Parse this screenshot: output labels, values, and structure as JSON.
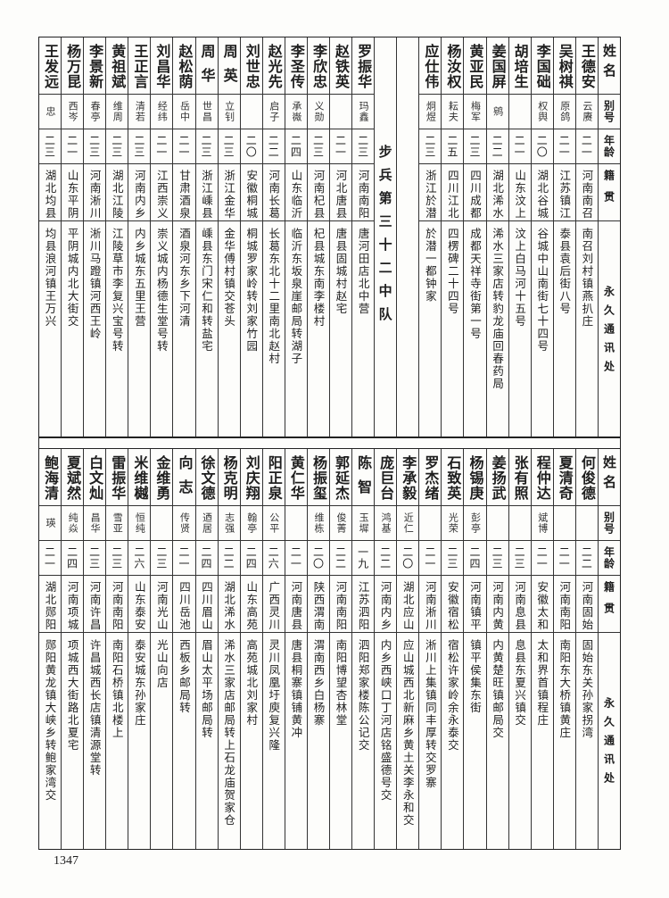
{
  "header": {
    "name": "姓名",
    "alias": "别号",
    "age": "年龄",
    "native": "籍贯",
    "address": "永久通讯处"
  },
  "top_group_1": [
    {
      "name": "王德安",
      "alias": "云赓",
      "age": "二一",
      "native": "河南南召",
      "address": "南召刘村镇燕扒庄"
    },
    {
      "name": "吴树祺",
      "alias": "原鸽",
      "age": "二一",
      "native": "江苏镇江",
      "address": "泰县袁后街八号"
    },
    {
      "name": "李国础",
      "alias": "权舆",
      "age": "二〇",
      "native": "湖北谷城",
      "address": "谷城中山南街七十四号"
    },
    {
      "name": "胡培生",
      "alias": "",
      "age": "二一",
      "native": "山东汶上",
      "address": "汶上白马河十五号"
    },
    {
      "name": "姜国屏",
      "alias": "鹓",
      "age": "二二",
      "native": "湖北浠水",
      "address": "浠水三家店转豹龙庙回春药局"
    },
    {
      "name": "黄亚民",
      "alias": "梅军",
      "age": "二三",
      "native": "四川成都",
      "address": "成都天祥寺街第一号"
    },
    {
      "name": "杨汝权",
      "alias": "耘夫",
      "age": "二五",
      "native": "四川江北",
      "address": "四楞碑二十四号"
    },
    {
      "name": "应仕伟",
      "alias": "炯煜",
      "age": "二三",
      "native": "浙江於潜",
      "address": "於潜一都钟家"
    }
  ],
  "section_title": "步兵第三十二中队",
  "top_group_2": [
    {
      "name": "罗振华",
      "alias": "玛鑫",
      "age": "二三",
      "native": "河南南阳",
      "address": "唐河田店北中营"
    },
    {
      "name": "赵铁英",
      "alias": "",
      "age": "二一",
      "native": "河北唐县",
      "address": "唐县固城村赵宅"
    },
    {
      "name": "李欣忠",
      "alias": "义勋",
      "age": "二三",
      "native": "河南杞县",
      "address": "杞县城东南李楼村"
    },
    {
      "name": "李圣传",
      "alias": "承嶶",
      "age": "二四",
      "native": "山东临沂",
      "address": "临沂东坂泉崖邮局转湖子"
    },
    {
      "name": "赵光先",
      "alias": "启子",
      "age": "二二",
      "native": "河南长葛",
      "address": "长葛东北十二里南北赵村"
    },
    {
      "name": "刘世忠",
      "alias": "",
      "age": "二〇",
      "native": "安徽桐城",
      "address": "桐城罗家岭转刘家竹园"
    },
    {
      "name": "周英",
      "alias": "立钊",
      "age": "二三",
      "native": "浙江金华",
      "address": "金华傅村镇交苍头"
    },
    {
      "name": "周华",
      "alias": "世昌",
      "age": "二三",
      "native": "浙江嵊县",
      "address": "嵊县东门宋仁和转盐宅"
    },
    {
      "name": "赵松荫",
      "alias": "岳中",
      "age": "二一",
      "native": "甘肃酒泉",
      "address": "酒泉河东乡下河清"
    },
    {
      "name": "刘昌华",
      "alias": "经纬",
      "age": "二一",
      "native": "江西崇义",
      "address": "崇义城内杨德生堂号转"
    },
    {
      "name": "王正言",
      "alias": "清若",
      "age": "二三",
      "native": "河南内乡",
      "address": "内乡城东五里王营"
    },
    {
      "name": "黄祖斌",
      "alias": "维周",
      "age": "二三",
      "native": "湖北江陵",
      "address": "江陵草市李复兴宝号转"
    },
    {
      "name": "李景新",
      "alias": "春亭",
      "age": "二三",
      "native": "河南淅川",
      "address": "淅川马蹬镇河西王岭"
    },
    {
      "name": "杨万昆",
      "alias": "西岑",
      "age": "二一",
      "native": "山东平阴",
      "address": "平阴城内北大街交"
    },
    {
      "name": "王发远",
      "alias": "忠",
      "age": "二三",
      "native": "湖北均县",
      "address": "均县浪河镇王万兴"
    }
  ],
  "bottom": [
    {
      "name": "何俊德",
      "alias": "",
      "age": "二二",
      "native": "河南固始",
      "address": "固始东关孙家拐湾"
    },
    {
      "name": "夏清奇",
      "alias": "",
      "age": "二一",
      "native": "河南南阳",
      "address": "南阳东大桥镇黄庄"
    },
    {
      "name": "程仲达",
      "alias": "斌博",
      "age": "二一",
      "native": "安徽太和",
      "address": "太和界首镇程庄"
    },
    {
      "name": "张有照",
      "alias": "",
      "age": "二三",
      "native": "河南息县",
      "address": "息县东夏兴镇交"
    },
    {
      "name": "姜扬武",
      "alias": "",
      "age": "二三",
      "native": "河南内黄",
      "address": "内黄楚旺镇邮局交"
    },
    {
      "name": "杨锡庚",
      "alias": "彭亭",
      "age": "二四",
      "native": "河南镇平",
      "address": "镇平侯集东街"
    },
    {
      "name": "石致英",
      "alias": "光荣",
      "age": "二三",
      "native": "安徽宿松",
      "address": "宿松许家岭余永泰交"
    },
    {
      "name": "罗杰绪",
      "alias": "",
      "age": "二一",
      "native": "河南淅川",
      "address": "淅川上集镇同丰厚转交罗寨"
    },
    {
      "name": "李承毅",
      "alias": "近仁",
      "age": "二〇",
      "native": "湖北应山",
      "address": "应山城西北新麻乡黄土关李永和交"
    },
    {
      "name": "庞巨台",
      "alias": "鸿基",
      "age": "二二",
      "native": "河南内乡",
      "address": "内乡西峡口丁河店铭盛德号交"
    },
    {
      "name": "陈智",
      "alias": "玉墀",
      "age": "一九",
      "native": "江苏泗阳",
      "address": "泗阳郑家楼陈公记交"
    },
    {
      "name": "郭延杰",
      "alias": "俊菁",
      "age": "二二",
      "native": "河南南阳",
      "address": "南阳博望杏林堂"
    },
    {
      "name": "杨振玺",
      "alias": "维栋",
      "age": "二〇",
      "native": "陕西渭南",
      "address": "渭南西乡白杨寨"
    },
    {
      "name": "黄仁华",
      "alias": "",
      "age": "二一",
      "native": "河南唐县",
      "address": "唐县桐寨镇铺黄冲"
    },
    {
      "name": "阳正泉",
      "alias": "公平",
      "age": "二六",
      "native": "广西灵川",
      "address": "灵川凤凰圩庾复兴隆"
    },
    {
      "name": "刘庆翔",
      "alias": "翰亭",
      "age": "二四",
      "native": "山东高苑",
      "address": "高苑城北刘家村"
    },
    {
      "name": "杨克明",
      "alias": "志强",
      "age": "二二",
      "native": "湖北浠水",
      "address": "浠水三家店邮局转上石龙庙贺家仓"
    },
    {
      "name": "徐文德",
      "alias": "迺居",
      "age": "二四",
      "native": "四川眉山",
      "address": "眉山太平场邮局转"
    },
    {
      "name": "向志",
      "alias": "传贤",
      "age": "二一",
      "native": "四川岳池",
      "address": "西板乡邮局转"
    },
    {
      "name": "金维勇",
      "alias": "",
      "age": "二三",
      "native": "河南光山",
      "address": "光山向店"
    },
    {
      "name": "米维樾",
      "alias": "恒纯",
      "age": "二六",
      "native": "山东泰安",
      "address": "泰安城东孙家庄"
    },
    {
      "name": "雷振华",
      "alias": "雪亚",
      "age": "二三",
      "native": "河南南阳",
      "address": "南阳石桥镇北楼上"
    },
    {
      "name": "白文灿",
      "alias": "昌华",
      "age": "二三",
      "native": "河南许昌",
      "address": "许昌城西长店镇清源堂转"
    },
    {
      "name": "夏斌然",
      "alias": "纯焱",
      "age": "二四",
      "native": "河南项城",
      "address": "项城西大街路北夏宅"
    },
    {
      "name": "鲍海清",
      "alias": "瑛",
      "age": "二一",
      "native": "湖北郧阳",
      "address": "郧阳黄龙镇大峡乡转鲍家湾交"
    }
  ],
  "page_number": "1347"
}
